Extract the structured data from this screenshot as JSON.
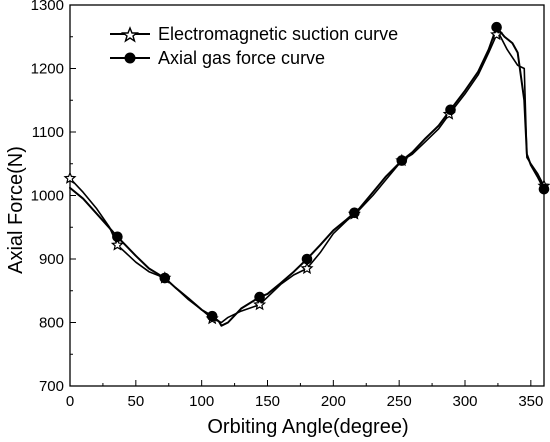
{
  "chart_data": {
    "type": "line",
    "xlabel": "Orbiting Angle(degree)",
    "ylabel": "Axial Force(N)",
    "xlim": [
      0,
      360
    ],
    "ylim": [
      700,
      1300
    ],
    "xticks": [
      0,
      50,
      100,
      150,
      200,
      250,
      300,
      350
    ],
    "yticks": [
      700,
      800,
      900,
      1000,
      1100,
      1200,
      1300
    ],
    "xtick_labels": [
      "0",
      "50",
      "100",
      "150",
      "200",
      "250",
      "300",
      "350"
    ],
    "ytick_labels": [
      "700",
      "800",
      "900",
      "1000",
      "1100",
      "1200",
      "1300"
    ],
    "grid": false,
    "legend_position": "top-left",
    "series": [
      {
        "name": "Electromagnetic suction curve",
        "marker": "star",
        "color": "#000000",
        "x": [
          0,
          10,
          20,
          30,
          36,
          50,
          60,
          72,
          80,
          90,
          100,
          108,
          115,
          120,
          130,
          144,
          150,
          160,
          170,
          180,
          190,
          200,
          210,
          220,
          230,
          240,
          252,
          260,
          270,
          280,
          288,
          300,
          310,
          318,
          325,
          332,
          340,
          345,
          347,
          350,
          355,
          360
        ],
        "y": [
          1027,
          1005,
          980,
          950,
          922,
          895,
          880,
          870,
          855,
          836,
          820,
          806,
          800,
          808,
          818,
          828,
          840,
          860,
          875,
          885,
          910,
          940,
          960,
          978,
          1000,
          1025,
          1055,
          1065,
          1085,
          1105,
          1128,
          1160,
          1190,
          1225,
          1258,
          1230,
          1205,
          1200,
          1060,
          1050,
          1035,
          1015
        ]
      },
      {
        "name": "Axial gas force curve",
        "marker": "circle",
        "color": "#000000",
        "x": [
          0,
          10,
          20,
          36,
          50,
          60,
          72,
          80,
          90,
          100,
          108,
          113,
          115,
          120,
          130,
          144,
          150,
          160,
          170,
          180,
          190,
          200,
          210,
          220,
          230,
          240,
          252,
          260,
          270,
          280,
          289,
          300,
          310,
          318,
          324,
          330,
          336,
          340,
          345,
          347,
          350,
          355,
          360
        ],
        "y": [
          1012,
          995,
          972,
          935,
          905,
          885,
          870,
          855,
          838,
          820,
          810,
          802,
          795,
          800,
          822,
          840,
          845,
          862,
          880,
          900,
          922,
          945,
          962,
          980,
          1005,
          1030,
          1055,
          1068,
          1090,
          1110,
          1135,
          1165,
          1195,
          1230,
          1265,
          1250,
          1240,
          1225,
          1150,
          1065,
          1048,
          1030,
          1010
        ]
      }
    ],
    "markers": {
      "star": [
        0,
        36,
        72,
        108,
        144,
        180,
        216,
        252,
        288,
        324,
        360
      ],
      "circle": [
        36,
        72,
        108,
        144,
        180,
        216,
        252,
        289,
        324,
        360
      ]
    }
  }
}
